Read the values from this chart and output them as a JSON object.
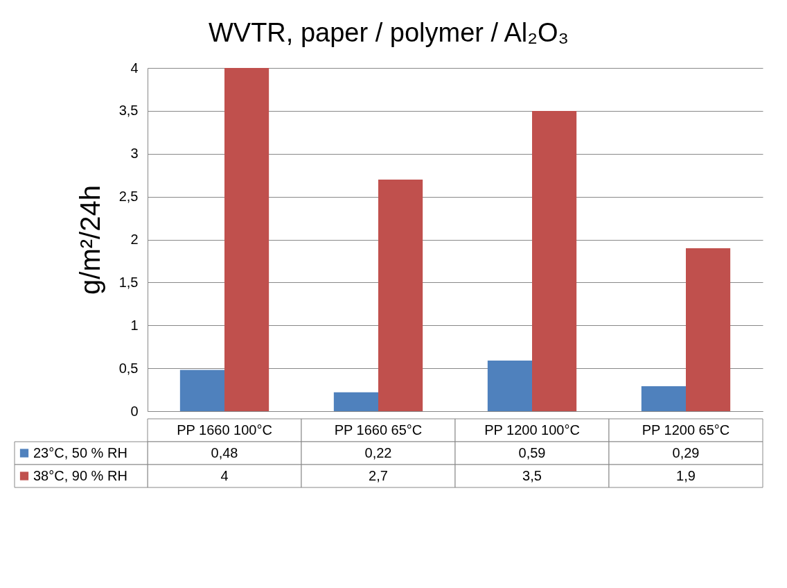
{
  "chart_data": {
    "type": "bar",
    "title": "WVTR, paper / polymer / Al₂O₃",
    "ylabel": "g/m²/24h",
    "categories": [
      "PP 1660 100°C",
      "PP 1660 65°C",
      "PP 1200 100°C",
      "PP 1200 65°C"
    ],
    "series": [
      {
        "name": "23°C, 50 % RH",
        "color": "#4f81bd",
        "values": [
          0.48,
          0.22,
          0.59,
          0.29
        ],
        "value_labels": [
          "0,48",
          "0,22",
          "0,59",
          "0,29"
        ]
      },
      {
        "name": "38°C, 90 % RH",
        "color": "#c0504d",
        "values": [
          4,
          2.7,
          3.5,
          1.9
        ],
        "value_labels": [
          "4",
          "2,7",
          "3,5",
          "1,9"
        ]
      }
    ],
    "ylim": [
      0,
      4
    ],
    "yticks": [
      0,
      {
        "value": 0.5,
        "label": "0,5"
      },
      1,
      {
        "value": 1.5,
        "label": "1,5"
      },
      2,
      {
        "value": 2.5,
        "label": "2,5"
      },
      3,
      {
        "value": 3.5,
        "label": "3,5"
      },
      4
    ],
    "grid": "y",
    "legend": "bottom"
  }
}
